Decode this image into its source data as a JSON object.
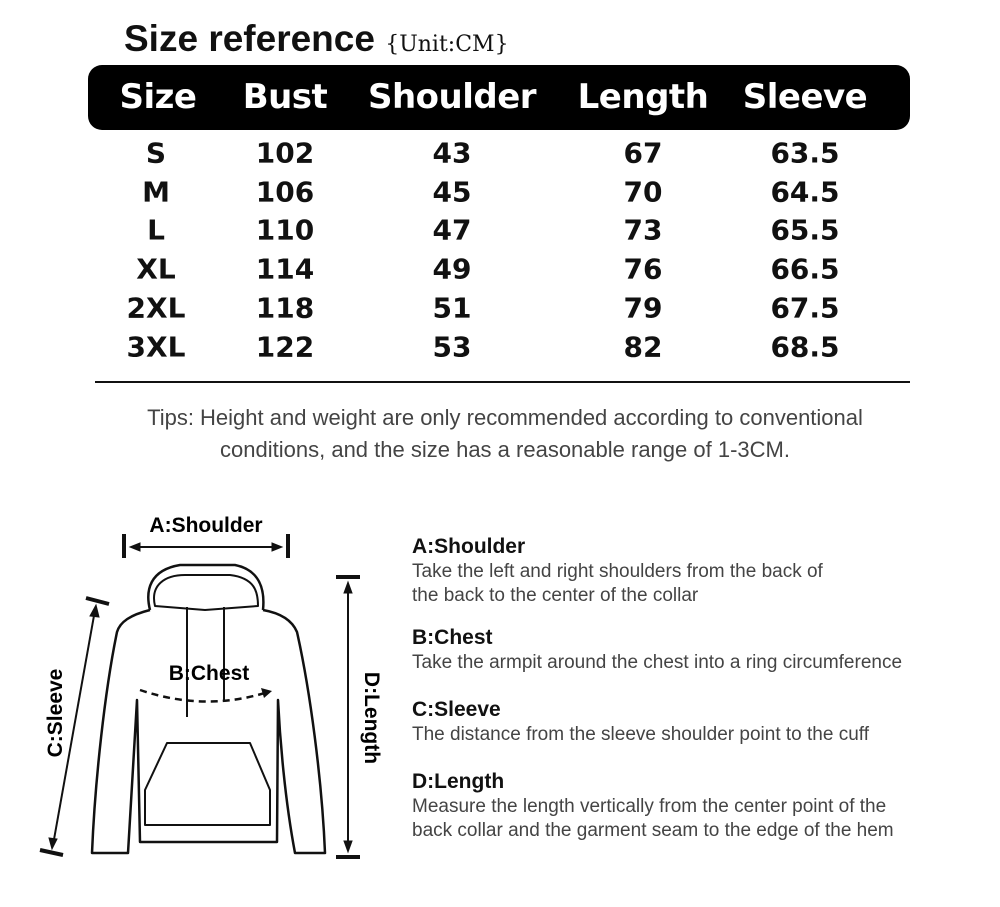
{
  "title": "Size reference",
  "unit": "{Unit:CM}",
  "table": {
    "headers": [
      "Size",
      "Bust",
      "Shoulder",
      "Length",
      "Sleeve"
    ],
    "rows": [
      [
        "S",
        "102",
        "43",
        "67",
        "63.5"
      ],
      [
        "M",
        "106",
        "45",
        "70",
        "64.5"
      ],
      [
        "L",
        "110",
        "47",
        "73",
        "65.5"
      ],
      [
        "XL",
        "114",
        "49",
        "76",
        "66.5"
      ],
      [
        "2XL",
        "118",
        "51",
        "79",
        "67.5"
      ],
      [
        "3XL",
        "122",
        "53",
        "82",
        "68.5"
      ]
    ]
  },
  "tips": [
    "Tips: Height and weight are only recommended according to conventional",
    "conditions, and the size has a reasonable range of 1-3CM."
  ],
  "diagram": {
    "shoulder": "A:Shoulder",
    "chest": "B:Chest",
    "sleeve": "C:Sleeve",
    "length": "D:Length"
  },
  "descriptions": [
    {
      "title": "A:Shoulder",
      "lines": [
        "Take the left and right shoulders from the back of",
        "the back to the center of the collar"
      ]
    },
    {
      "title": "B:Chest",
      "lines": [
        "Take the armpit around the chest into a ring circumference"
      ]
    },
    {
      "title": "C:Sleeve",
      "lines": [
        "The distance from the sleeve shoulder point to the cuff"
      ]
    },
    {
      "title": "D:Length",
      "lines": [
        "Measure the length vertically from the center point of the",
        "back collar and the garment seam to the edge of the hem"
      ]
    }
  ]
}
